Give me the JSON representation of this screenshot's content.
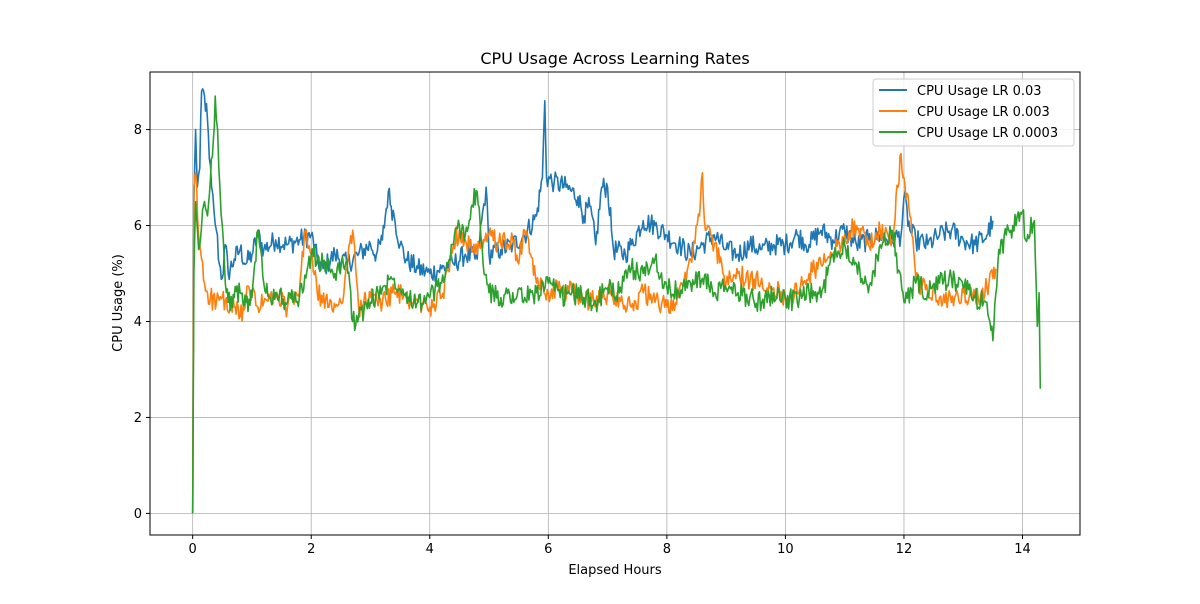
{
  "chart_data": {
    "type": "line",
    "title": "CPU Usage Across Learning Rates",
    "xlabel": "Elapsed Hours",
    "ylabel": "CPU Usage (%)",
    "xlim": [
      -0.72,
      14.97
    ],
    "ylim": [
      -0.45,
      9.2
    ],
    "xticks": [
      0,
      2,
      4,
      6,
      8,
      10,
      12,
      14
    ],
    "yticks": [
      0,
      2,
      4,
      6,
      8
    ],
    "grid": true,
    "legend_position": "top-right",
    "series": [
      {
        "name": "CPU Usage LR 0.03",
        "color": "#1f77b4",
        "points": [
          [
            0,
            0
          ],
          [
            0.02,
            6.5
          ],
          [
            0.05,
            8.0
          ],
          [
            0.08,
            6.8
          ],
          [
            0.12,
            7.2
          ],
          [
            0.15,
            8.8
          ],
          [
            0.2,
            8.7
          ],
          [
            0.25,
            8.2
          ],
          [
            0.28,
            7.4
          ],
          [
            0.32,
            6.8
          ],
          [
            0.36,
            6.3
          ],
          [
            0.4,
            5.9
          ],
          [
            0.45,
            5.2
          ],
          [
            0.5,
            4.9
          ],
          [
            0.55,
            5.6
          ],
          [
            0.6,
            5.0
          ],
          [
            0.7,
            5.3
          ],
          [
            0.8,
            5.5
          ],
          [
            0.9,
            5.2
          ],
          [
            1.0,
            5.4
          ],
          [
            1.1,
            5.8
          ],
          [
            1.2,
            5.5
          ],
          [
            1.4,
            5.7
          ],
          [
            1.6,
            5.6
          ],
          [
            1.8,
            5.7
          ],
          [
            2.0,
            5.8
          ],
          [
            2.1,
            5.3
          ],
          [
            2.2,
            5.1
          ],
          [
            2.4,
            5.4
          ],
          [
            2.6,
            5.2
          ],
          [
            2.8,
            5.4
          ],
          [
            3.0,
            5.6
          ],
          [
            3.1,
            5.4
          ],
          [
            3.2,
            5.7
          ],
          [
            3.3,
            6.7
          ],
          [
            3.35,
            6.4
          ],
          [
            3.4,
            6.2
          ],
          [
            3.5,
            5.6
          ],
          [
            3.6,
            5.3
          ],
          [
            3.8,
            5.1
          ],
          [
            4.0,
            5.0
          ],
          [
            4.2,
            5.1
          ],
          [
            4.4,
            5.2
          ],
          [
            4.6,
            5.4
          ],
          [
            4.8,
            5.3
          ],
          [
            4.95,
            6.8
          ],
          [
            5.0,
            5.4
          ],
          [
            5.2,
            5.5
          ],
          [
            5.4,
            5.6
          ],
          [
            5.6,
            5.8
          ],
          [
            5.8,
            6.2
          ],
          [
            5.9,
            7.0
          ],
          [
            5.94,
            8.6
          ],
          [
            5.97,
            7.0
          ],
          [
            6.1,
            6.9
          ],
          [
            6.3,
            6.8
          ],
          [
            6.5,
            6.6
          ],
          [
            6.6,
            6.2
          ],
          [
            6.7,
            6.4
          ],
          [
            6.8,
            5.6
          ],
          [
            6.9,
            6.8
          ],
          [
            7.0,
            6.8
          ],
          [
            7.1,
            5.5
          ],
          [
            7.3,
            5.4
          ],
          [
            7.4,
            5.6
          ],
          [
            7.6,
            6.1
          ],
          [
            7.8,
            6.0
          ],
          [
            8.0,
            5.8
          ],
          [
            8.2,
            5.6
          ],
          [
            8.4,
            5.4
          ],
          [
            8.6,
            5.6
          ],
          [
            8.8,
            5.8
          ],
          [
            9.0,
            5.5
          ],
          [
            9.2,
            5.4
          ],
          [
            9.4,
            5.6
          ],
          [
            9.6,
            5.5
          ],
          [
            9.8,
            5.6
          ],
          [
            10.0,
            5.6
          ],
          [
            10.2,
            5.8
          ],
          [
            10.4,
            5.6
          ],
          [
            10.6,
            5.9
          ],
          [
            10.8,
            5.7
          ],
          [
            11.0,
            5.9
          ],
          [
            11.2,
            5.6
          ],
          [
            11.4,
            5.7
          ],
          [
            11.6,
            5.8
          ],
          [
            11.8,
            5.7
          ],
          [
            11.95,
            5.8
          ],
          [
            12.0,
            6.6
          ],
          [
            12.1,
            5.9
          ],
          [
            12.2,
            5.7
          ],
          [
            12.4,
            5.6
          ],
          [
            12.6,
            5.8
          ],
          [
            12.8,
            5.9
          ],
          [
            13.0,
            5.7
          ],
          [
            13.2,
            5.6
          ],
          [
            13.4,
            5.8
          ],
          [
            13.5,
            6.1
          ]
        ]
      },
      {
        "name": "CPU Usage LR 0.003",
        "color": "#ff7f0e",
        "points": [
          [
            0,
            0
          ],
          [
            0.02,
            6.8
          ],
          [
            0.05,
            7.1
          ],
          [
            0.1,
            5.8
          ],
          [
            0.15,
            5.3
          ],
          [
            0.2,
            4.8
          ],
          [
            0.25,
            4.6
          ],
          [
            0.3,
            4.5
          ],
          [
            0.4,
            4.4
          ],
          [
            0.5,
            4.5
          ],
          [
            0.6,
            4.2
          ],
          [
            0.7,
            4.3
          ],
          [
            0.8,
            4.1
          ],
          [
            0.9,
            4.5
          ],
          [
            1.0,
            4.6
          ],
          [
            1.1,
            4.3
          ],
          [
            1.2,
            4.4
          ],
          [
            1.4,
            4.5
          ],
          [
            1.6,
            4.3
          ],
          [
            1.8,
            4.6
          ],
          [
            1.9,
            5.9
          ],
          [
            2.0,
            5.4
          ],
          [
            2.1,
            4.6
          ],
          [
            2.3,
            4.3
          ],
          [
            2.5,
            4.4
          ],
          [
            2.6,
            5.1
          ],
          [
            2.7,
            5.9
          ],
          [
            2.8,
            4.3
          ],
          [
            3.0,
            4.5
          ],
          [
            3.2,
            4.4
          ],
          [
            3.4,
            4.6
          ],
          [
            3.6,
            4.5
          ],
          [
            3.8,
            4.4
          ],
          [
            4.0,
            4.3
          ],
          [
            4.2,
            4.5
          ],
          [
            4.4,
            5.6
          ],
          [
            4.5,
            5.9
          ],
          [
            4.6,
            5.7
          ],
          [
            4.8,
            5.4
          ],
          [
            5.0,
            5.8
          ],
          [
            5.2,
            5.6
          ],
          [
            5.4,
            5.7
          ],
          [
            5.5,
            5.2
          ],
          [
            5.6,
            5.9
          ],
          [
            5.7,
            5.4
          ],
          [
            5.8,
            4.8
          ],
          [
            6.0,
            4.6
          ],
          [
            6.2,
            4.7
          ],
          [
            6.4,
            4.6
          ],
          [
            6.6,
            4.5
          ],
          [
            6.8,
            4.4
          ],
          [
            7.0,
            4.6
          ],
          [
            7.2,
            4.5
          ],
          [
            7.4,
            4.3
          ],
          [
            7.6,
            4.6
          ],
          [
            7.8,
            4.4
          ],
          [
            8.0,
            4.3
          ],
          [
            8.2,
            4.5
          ],
          [
            8.4,
            5.3
          ],
          [
            8.55,
            6.2
          ],
          [
            8.6,
            7.1
          ],
          [
            8.65,
            5.9
          ],
          [
            8.8,
            5.6
          ],
          [
            9.0,
            4.8
          ],
          [
            9.2,
            5.0
          ],
          [
            9.4,
            4.8
          ],
          [
            9.6,
            4.9
          ],
          [
            9.8,
            4.7
          ],
          [
            10.0,
            4.5
          ],
          [
            10.2,
            4.6
          ],
          [
            10.4,
            5.0
          ],
          [
            10.6,
            5.2
          ],
          [
            10.8,
            5.4
          ],
          [
            11.0,
            5.8
          ],
          [
            11.2,
            6.0
          ],
          [
            11.4,
            5.6
          ],
          [
            11.6,
            5.9
          ],
          [
            11.8,
            5.7
          ],
          [
            11.9,
            6.8
          ],
          [
            11.95,
            7.5
          ],
          [
            12.0,
            7.0
          ],
          [
            12.1,
            6.2
          ],
          [
            12.2,
            4.9
          ],
          [
            12.4,
            4.6
          ],
          [
            12.6,
            4.5
          ],
          [
            12.8,
            4.4
          ],
          [
            13.0,
            4.6
          ],
          [
            13.2,
            4.5
          ],
          [
            13.4,
            4.7
          ],
          [
            13.5,
            4.9
          ],
          [
            13.55,
            5.1
          ]
        ]
      },
      {
        "name": "CPU Usage LR 0.0003",
        "color": "#2ca02c",
        "points": [
          [
            0,
            0
          ],
          [
            0.02,
            5.0
          ],
          [
            0.05,
            6.5
          ],
          [
            0.1,
            5.5
          ],
          [
            0.15,
            6.0
          ],
          [
            0.2,
            6.5
          ],
          [
            0.25,
            6.2
          ],
          [
            0.3,
            7.0
          ],
          [
            0.35,
            7.8
          ],
          [
            0.38,
            8.7
          ],
          [
            0.42,
            8.0
          ],
          [
            0.46,
            6.8
          ],
          [
            0.5,
            6.0
          ],
          [
            0.55,
            4.8
          ],
          [
            0.6,
            4.4
          ],
          [
            0.7,
            4.5
          ],
          [
            0.8,
            4.6
          ],
          [
            0.9,
            4.4
          ],
          [
            1.0,
            4.5
          ],
          [
            1.1,
            5.9
          ],
          [
            1.2,
            4.8
          ],
          [
            1.3,
            4.5
          ],
          [
            1.4,
            4.6
          ],
          [
            1.6,
            4.4
          ],
          [
            1.8,
            4.5
          ],
          [
            2.0,
            5.4
          ],
          [
            2.2,
            5.2
          ],
          [
            2.4,
            5.0
          ],
          [
            2.6,
            5.3
          ],
          [
            2.7,
            4.0
          ],
          [
            2.8,
            4.1
          ],
          [
            3.0,
            4.4
          ],
          [
            3.2,
            4.7
          ],
          [
            3.4,
            4.9
          ],
          [
            3.6,
            4.6
          ],
          [
            3.8,
            4.4
          ],
          [
            4.0,
            4.5
          ],
          [
            4.2,
            4.8
          ],
          [
            4.4,
            5.6
          ],
          [
            4.5,
            6.0
          ],
          [
            4.6,
            5.8
          ],
          [
            4.7,
            6.4
          ],
          [
            4.8,
            6.7
          ],
          [
            4.9,
            5.2
          ],
          [
            5.0,
            4.6
          ],
          [
            5.2,
            4.5
          ],
          [
            5.4,
            4.6
          ],
          [
            5.6,
            4.5
          ],
          [
            5.8,
            4.6
          ],
          [
            6.0,
            4.8
          ],
          [
            6.2,
            4.5
          ],
          [
            6.4,
            4.6
          ],
          [
            6.6,
            4.5
          ],
          [
            6.8,
            4.4
          ],
          [
            7.0,
            4.7
          ],
          [
            7.2,
            4.6
          ],
          [
            7.4,
            5.1
          ],
          [
            7.6,
            5.0
          ],
          [
            7.8,
            5.3
          ],
          [
            8.0,
            4.7
          ],
          [
            8.2,
            4.6
          ],
          [
            8.4,
            4.8
          ],
          [
            8.6,
            4.9
          ],
          [
            8.8,
            4.6
          ],
          [
            9.0,
            4.7
          ],
          [
            9.2,
            4.6
          ],
          [
            9.4,
            4.5
          ],
          [
            9.6,
            4.4
          ],
          [
            9.8,
            4.6
          ],
          [
            10.0,
            4.5
          ],
          [
            10.2,
            4.4
          ],
          [
            10.4,
            4.6
          ],
          [
            10.6,
            4.5
          ],
          [
            10.8,
            5.4
          ],
          [
            11.0,
            5.6
          ],
          [
            11.2,
            5.2
          ],
          [
            11.4,
            4.6
          ],
          [
            11.6,
            5.6
          ],
          [
            11.8,
            5.9
          ],
          [
            12.0,
            4.4
          ],
          [
            12.2,
            4.8
          ],
          [
            12.4,
            4.6
          ],
          [
            12.6,
            4.8
          ],
          [
            12.8,
            4.9
          ],
          [
            13.0,
            4.7
          ],
          [
            13.2,
            4.5
          ],
          [
            13.4,
            4.4
          ],
          [
            13.45,
            4.0
          ],
          [
            13.5,
            3.6
          ],
          [
            13.6,
            5.5
          ],
          [
            13.8,
            5.9
          ],
          [
            14.0,
            6.3
          ],
          [
            14.05,
            5.7
          ],
          [
            14.2,
            6.1
          ],
          [
            14.25,
            3.9
          ],
          [
            14.28,
            4.6
          ],
          [
            14.3,
            2.6
          ]
        ]
      }
    ]
  }
}
